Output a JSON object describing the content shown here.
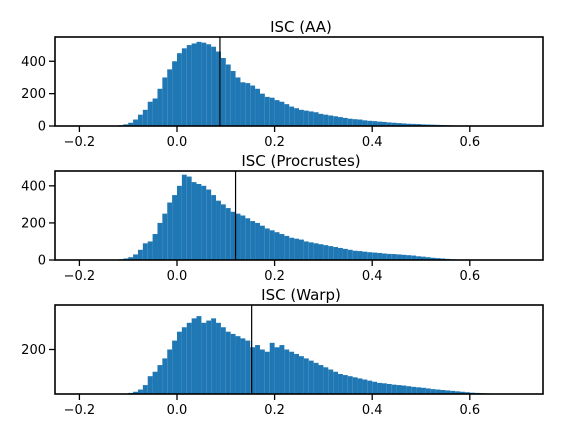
{
  "chart_data": [
    {
      "type": "bar",
      "title": "ISC (AA)",
      "xlabel": "",
      "ylabel": "",
      "xlim": [
        -0.25,
        0.75
      ],
      "ylim": [
        0,
        550
      ],
      "xticks": [
        "-0.2",
        "0.0",
        "0.2",
        "0.4",
        "0.6"
      ],
      "yticks": [
        "0",
        "200",
        "400"
      ],
      "bin_start": -0.12,
      "bin_width": 0.01,
      "values": [
        5,
        10,
        20,
        40,
        70,
        100,
        150,
        170,
        230,
        300,
        350,
        400,
        450,
        480,
        500,
        510,
        520,
        515,
        505,
        490,
        460,
        420,
        380,
        340,
        300,
        270,
        265,
        250,
        230,
        200,
        180,
        175,
        160,
        150,
        135,
        120,
        110,
        100,
        95,
        90,
        85,
        75,
        70,
        65,
        60,
        55,
        50,
        45,
        42,
        40,
        35,
        32,
        30,
        27,
        25,
        22,
        20,
        18,
        16,
        14,
        13,
        12,
        10,
        9,
        8,
        7,
        6,
        5,
        4,
        3,
        3,
        2,
        2,
        1,
        1,
        1
      ],
      "vline_x": 0.088,
      "grid": false,
      "legend": "none"
    },
    {
      "type": "bar",
      "title": "ISC (Procrustes)",
      "xlabel": "",
      "ylabel": "",
      "xlim": [
        -0.25,
        0.75
      ],
      "ylim": [
        0,
        480
      ],
      "xticks": [
        "-0.2",
        "0.0",
        "0.2",
        "0.4",
        "0.6"
      ],
      "yticks": [
        "0",
        "200",
        "400"
      ],
      "bin_start": -0.12,
      "bin_width": 0.01,
      "values": [
        4,
        8,
        15,
        30,
        55,
        90,
        100,
        140,
        200,
        250,
        310,
        350,
        400,
        460,
        450,
        420,
        410,
        400,
        380,
        350,
        320,
        300,
        280,
        260,
        250,
        240,
        225,
        210,
        200,
        185,
        170,
        160,
        150,
        140,
        130,
        120,
        115,
        110,
        100,
        95,
        90,
        85,
        80,
        75,
        70,
        65,
        60,
        55,
        50,
        48,
        45,
        42,
        40,
        38,
        35,
        33,
        32,
        30,
        28,
        26,
        24,
        20,
        18,
        15,
        12,
        10,
        8,
        6,
        4,
        3,
        2,
        1
      ],
      "vline_x": 0.12,
      "grid": false,
      "legend": "none"
    },
    {
      "type": "bar",
      "title": "ISC (Warp)",
      "xlabel": "",
      "ylabel": "",
      "xlim": [
        -0.25,
        0.75
      ],
      "ylim": [
        0,
        400
      ],
      "xticks": [
        "-0.2",
        "0.0",
        "0.2",
        "0.4",
        "0.6"
      ],
      "yticks": [
        "200"
      ],
      "bin_start": -0.1,
      "bin_width": 0.01,
      "values": [
        5,
        10,
        20,
        40,
        80,
        100,
        130,
        160,
        200,
        240,
        280,
        300,
        320,
        340,
        350,
        320,
        330,
        340,
        320,
        300,
        280,
        270,
        260,
        250,
        240,
        210,
        220,
        200,
        190,
        230,
        210,
        220,
        200,
        190,
        180,
        170,
        160,
        150,
        140,
        130,
        120,
        110,
        100,
        90,
        85,
        80,
        75,
        70,
        65,
        60,
        55,
        50,
        48,
        45,
        42,
        40,
        38,
        35,
        32,
        30,
        28,
        25,
        22,
        20,
        18,
        16,
        14,
        12,
        10,
        8,
        6,
        5,
        4,
        3,
        2,
        1
      ],
      "vline_x": 0.153,
      "grid": false,
      "legend": "none"
    }
  ]
}
